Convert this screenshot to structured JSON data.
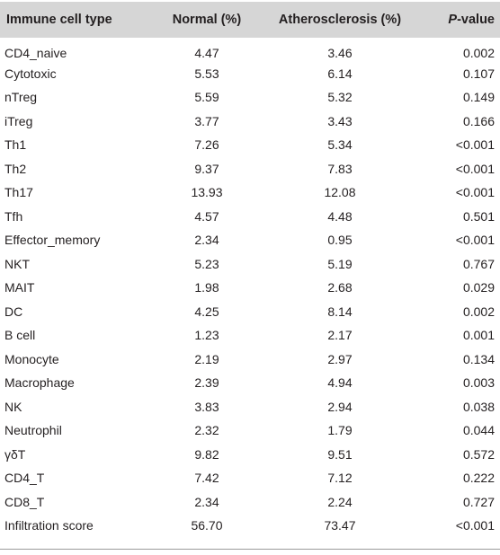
{
  "table": {
    "headers": {
      "type": "Immune cell type",
      "normal": "Normal (%)",
      "atherosclerosis": "Atherosclerosis (%)",
      "p_prefix": "P",
      "p_suffix": "-value"
    },
    "rows": [
      {
        "type": "CD4_naive",
        "normal": "4.47",
        "atherosclerosis": "3.46",
        "p": "0.002"
      },
      {
        "type": "Cytotoxic",
        "normal": "5.53",
        "atherosclerosis": "6.14",
        "p": "0.107"
      },
      {
        "type": "nTreg",
        "normal": "5.59",
        "atherosclerosis": "5.32",
        "p": "0.149"
      },
      {
        "type": "iTreg",
        "normal": "3.77",
        "atherosclerosis": "3.43",
        "p": "0.166"
      },
      {
        "type": "Th1",
        "normal": "7.26",
        "atherosclerosis": "5.34",
        "p": "<0.001"
      },
      {
        "type": "Th2",
        "normal": "9.37",
        "atherosclerosis": "7.83",
        "p": "<0.001"
      },
      {
        "type": "Th17",
        "normal": "13.93",
        "atherosclerosis": "12.08",
        "p": "<0.001"
      },
      {
        "type": "Tfh",
        "normal": "4.57",
        "atherosclerosis": "4.48",
        "p": "0.501"
      },
      {
        "type": "Effector_memory",
        "normal": "2.34",
        "atherosclerosis": "0.95",
        "p": "<0.001"
      },
      {
        "type": "NKT",
        "normal": "5.23",
        "atherosclerosis": "5.19",
        "p": "0.767"
      },
      {
        "type": "MAIT",
        "normal": "1.98",
        "atherosclerosis": "2.68",
        "p": "0.029"
      },
      {
        "type": "DC",
        "normal": "4.25",
        "atherosclerosis": "8.14",
        "p": "0.002"
      },
      {
        "type": "B cell",
        "normal": "1.23",
        "atherosclerosis": "2.17",
        "p": "0.001"
      },
      {
        "type": "Monocyte",
        "normal": "2.19",
        "atherosclerosis": "2.97",
        "p": "0.134"
      },
      {
        "type": "Macrophage",
        "normal": "2.39",
        "atherosclerosis": "4.94",
        "p": "0.003"
      },
      {
        "type": "NK",
        "normal": "3.83",
        "atherosclerosis": "2.94",
        "p": "0.038"
      },
      {
        "type": "Neutrophil",
        "normal": "2.32",
        "atherosclerosis": "1.79",
        "p": "0.044"
      },
      {
        "type": "γδT",
        "normal": "9.82",
        "atherosclerosis": "9.51",
        "p": "0.572"
      },
      {
        "type": "CD4_T",
        "normal": "7.42",
        "atherosclerosis": "7.12",
        "p": "0.222"
      },
      {
        "type": "CD8_T",
        "normal": "2.34",
        "atherosclerosis": "2.24",
        "p": "0.727"
      },
      {
        "type": "Infiltration score",
        "normal": "56.70",
        "atherosclerosis": "73.47",
        "p": "<0.001"
      }
    ]
  },
  "colors": {
    "header_background": "#d6d6d6",
    "text": "#231f20",
    "rule": "#9a9a9a"
  }
}
